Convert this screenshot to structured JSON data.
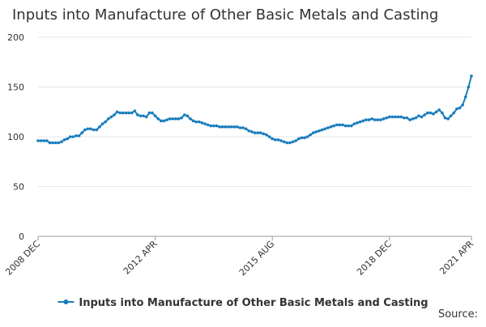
{
  "chart_data": {
    "type": "line",
    "title": "Inputs into Manufacture of Other Basic Metals and Casting",
    "source": "Source:",
    "categories": [
      "2008 DEC",
      null,
      null,
      null,
      null,
      null,
      null,
      null,
      null,
      null,
      null,
      null,
      null,
      null,
      null,
      null,
      null,
      null,
      null,
      null,
      null,
      null,
      null,
      null,
      null,
      null,
      null,
      null,
      null,
      null,
      null,
      null,
      null,
      null,
      null,
      null,
      null,
      null,
      null,
      null,
      "2012 APR",
      null,
      null,
      null,
      null,
      null,
      null,
      null,
      null,
      null,
      null,
      null,
      null,
      null,
      null,
      null,
      null,
      null,
      null,
      null,
      null,
      null,
      null,
      null,
      null,
      null,
      null,
      null,
      null,
      null,
      null,
      null,
      null,
      null,
      null,
      null,
      null,
      null,
      null,
      null,
      "2015 AUG",
      null,
      null,
      null,
      null,
      null,
      null,
      null,
      null,
      null,
      null,
      null,
      null,
      null,
      null,
      null,
      null,
      null,
      null,
      null,
      null,
      null,
      null,
      null,
      null,
      null,
      null,
      null,
      null,
      null,
      null,
      null,
      null,
      null,
      null,
      null,
      null,
      null,
      null,
      null,
      "2018 DEC",
      null,
      null,
      null,
      null,
      null,
      null,
      null,
      null,
      null,
      null,
      null,
      null,
      null,
      null,
      null,
      null,
      null,
      null,
      null,
      null,
      null,
      null,
      null,
      null,
      null,
      null,
      null,
      "2021 APR"
    ],
    "series": [
      {
        "name": "Inputs into Manufacture of Other Basic Metals and Casting",
        "color": "#1a7dbd",
        "values": [
          96,
          96,
          96,
          96,
          94,
          94,
          94,
          94,
          95,
          97,
          98,
          100,
          100,
          101,
          101,
          104,
          107,
          108,
          108,
          107,
          107,
          110,
          113,
          115,
          118,
          120,
          122,
          125,
          124,
          124,
          124,
          124,
          124,
          126,
          122,
          121,
          121,
          120,
          124,
          124,
          121,
          118,
          116,
          116,
          117,
          118,
          118,
          118,
          118,
          119,
          122,
          121,
          118,
          116,
          115,
          115,
          114,
          113,
          112,
          111,
          111,
          111,
          110,
          110,
          110,
          110,
          110,
          110,
          110,
          109,
          109,
          108,
          106,
          105,
          104,
          104,
          104,
          103,
          102,
          100,
          98,
          97,
          97,
          96,
          95,
          94,
          94,
          95,
          96,
          98,
          99,
          99,
          100,
          102,
          104,
          105,
          106,
          107,
          108,
          109,
          110,
          111,
          112,
          112,
          112,
          111,
          111,
          111,
          113,
          114,
          115,
          116,
          117,
          117,
          118,
          117,
          117,
          117,
          118,
          119,
          120,
          120,
          120,
          120,
          120,
          119,
          119,
          117,
          118,
          119,
          121,
          120,
          122,
          124,
          124,
          123,
          125,
          127,
          124,
          119,
          118,
          121,
          124,
          128,
          129,
          132,
          140,
          150,
          161
        ]
      }
    ],
    "ylim": [
      0,
      200
    ],
    "yticks": [
      0,
      50,
      100,
      150,
      200
    ],
    "grid": true
  }
}
